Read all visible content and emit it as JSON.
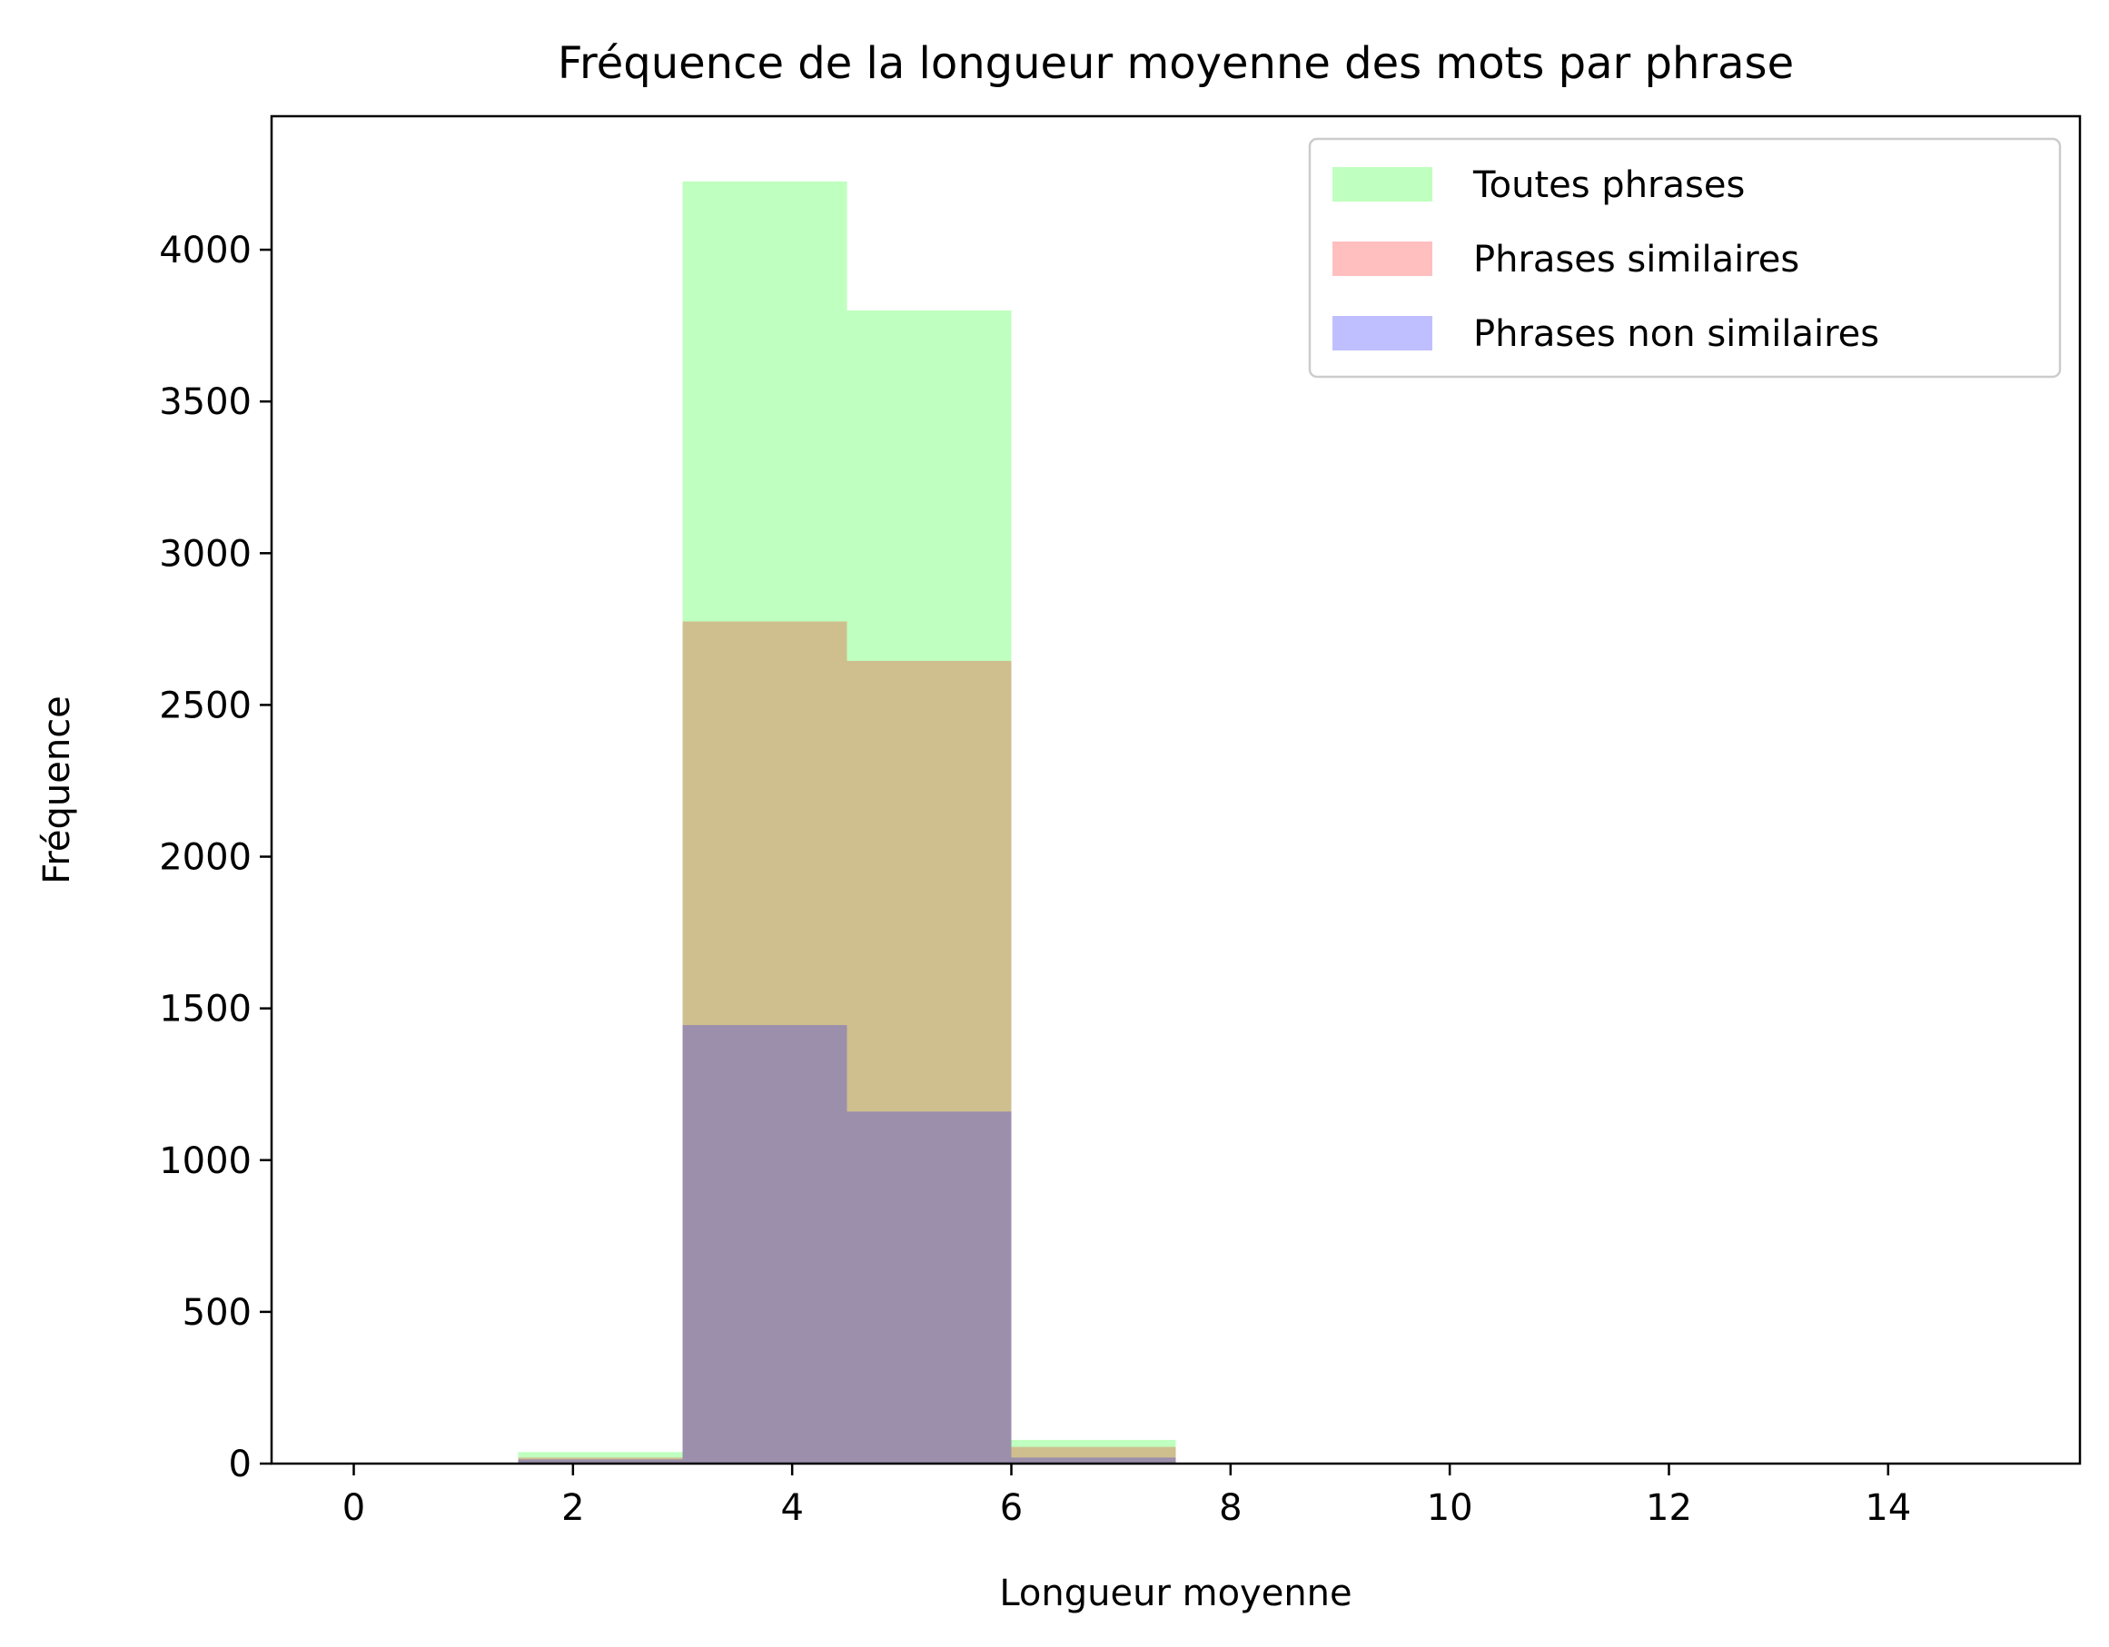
{
  "chart_data": {
    "type": "bar",
    "title": "Fréquence de la longueur moyenne des mots par phrase",
    "xlabel": "Longueur moyenne",
    "ylabel": "Fréquence",
    "xlim": [
      -0.75,
      15.75
    ],
    "ylim": [
      0,
      4440
    ],
    "xticks": [
      0,
      2,
      4,
      6,
      8,
      10,
      12,
      14
    ],
    "yticks": [
      0,
      500,
      1000,
      1500,
      2000,
      2500,
      3000,
      3500,
      4000
    ],
    "bin_edges": [
      0,
      1.5,
      3,
      4.5,
      6,
      7.5,
      9,
      10.5,
      12,
      13.5,
      15
    ],
    "grid": false,
    "legend_position": "top-right",
    "series": [
      {
        "name": "Toutes phrases",
        "color": "#00ff00",
        "alpha": 0.25,
        "values": [
          0,
          38,
          4225,
          3800,
          78,
          0,
          0,
          0,
          0,
          0
        ]
      },
      {
        "name": "Phrases similaires",
        "color": "#ff0000",
        "alpha": 0.25,
        "values": [
          0,
          20,
          2775,
          2645,
          55,
          0,
          0,
          0,
          0,
          0
        ]
      },
      {
        "name": "Phrases non similaires",
        "color": "#0000ff",
        "alpha": 0.25,
        "values": [
          0,
          14,
          1445,
          1160,
          20,
          0,
          0,
          0,
          0,
          0
        ]
      }
    ]
  }
}
